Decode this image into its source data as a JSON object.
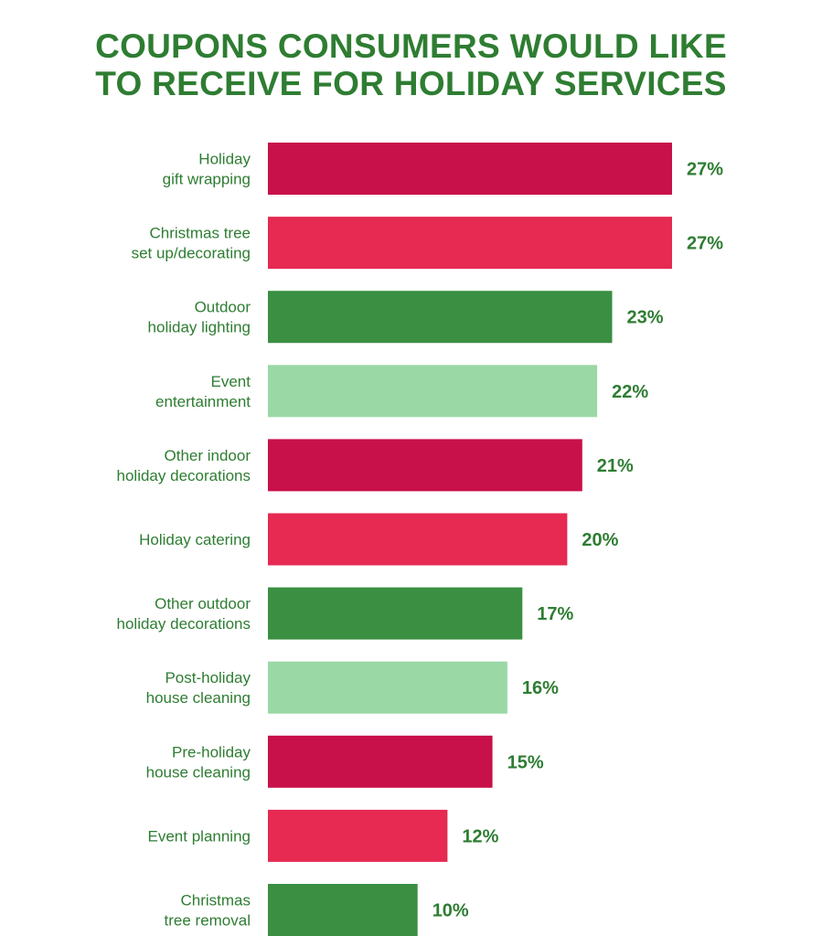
{
  "title": {
    "line1": "COUPONS CONSUMERS WOULD LIKE",
    "line2": "TO RECEIVE FOR HOLIDAY SERVICES"
  },
  "chart_data": {
    "type": "bar",
    "orientation": "horizontal",
    "title": "COUPONS CONSUMERS WOULD LIKE TO RECEIVE FOR HOLIDAY SERVICES",
    "xlabel": "",
    "ylabel": "",
    "grid": false,
    "value_suffix": "%",
    "xlim": [
      0,
      27
    ],
    "categories": [
      [
        "Holiday",
        "gift wrapping"
      ],
      [
        "Christmas tree",
        "set up/decorating"
      ],
      [
        "Outdoor",
        "holiday lighting"
      ],
      [
        "Event",
        "entertainment"
      ],
      [
        "Other indoor",
        "holiday decorations"
      ],
      [
        "Holiday catering"
      ],
      [
        "Other outdoor",
        "holiday decorations"
      ],
      [
        "Post-holiday",
        "house cleaning"
      ],
      [
        "Pre-holiday",
        "house cleaning"
      ],
      [
        "Event planning"
      ],
      [
        "Christmas",
        "tree removal"
      ]
    ],
    "values": [
      27,
      27,
      23,
      22,
      21,
      20,
      17,
      16,
      15,
      12,
      10
    ],
    "colors": [
      "#c8104a",
      "#e62a52",
      "#3a8f42",
      "#9ad8a6",
      "#c8104a",
      "#e62a52",
      "#3a8f42",
      "#9ad8a6",
      "#c8104a",
      "#e62a52",
      "#3a8f42"
    ]
  }
}
